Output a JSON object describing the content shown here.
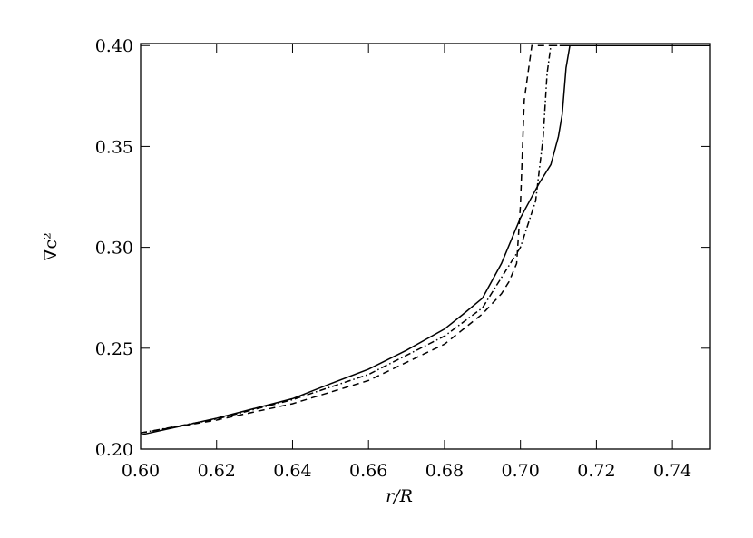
{
  "chart_data": {
    "type": "line",
    "x_label": "r/R",
    "y_label": "∇c²",
    "xlim": [
      0.6,
      0.75
    ],
    "ylim": [
      0.2,
      0.401
    ],
    "xticks": [
      {
        "value": 0.6,
        "label": "0.60"
      },
      {
        "value": 0.62,
        "label": "0.62"
      },
      {
        "value": 0.64,
        "label": "0.64"
      },
      {
        "value": 0.66,
        "label": "0.66"
      },
      {
        "value": 0.68,
        "label": "0.68"
      },
      {
        "value": 0.7,
        "label": "0.70"
      },
      {
        "value": 0.72,
        "label": "0.72"
      },
      {
        "value": 0.74,
        "label": "0.74"
      }
    ],
    "yticks": [
      {
        "value": 0.2,
        "label": "0.20"
      },
      {
        "value": 0.25,
        "label": "0.25"
      },
      {
        "value": 0.3,
        "label": "0.30"
      },
      {
        "value": 0.35,
        "label": "0.35"
      },
      {
        "value": 0.4,
        "label": "0.40"
      }
    ],
    "series": [
      {
        "color": "#000000",
        "dash": "none",
        "x": [
          0.6,
          0.62,
          0.64,
          0.65,
          0.66,
          0.67,
          0.68,
          0.685,
          0.69,
          0.695,
          0.7,
          0.705,
          0.708,
          0.71,
          0.711,
          0.712,
          0.713,
          0.75
        ],
        "values": [
          0.207,
          0.2153,
          0.225,
          0.2324,
          0.2396,
          0.249,
          0.2595,
          0.267,
          0.2748,
          0.292,
          0.3146,
          0.332,
          0.341,
          0.355,
          0.366,
          0.389,
          0.4,
          0.4
        ]
      },
      {
        "color": "#000000",
        "dash": "7 5",
        "x": [
          0.6,
          0.62,
          0.64,
          0.66,
          0.68,
          0.69,
          0.695,
          0.697,
          0.699,
          0.7,
          0.701,
          0.703,
          0.75
        ],
        "values": [
          0.208,
          0.2144,
          0.2225,
          0.234,
          0.252,
          0.267,
          0.277,
          0.283,
          0.292,
          0.321,
          0.373,
          0.4,
          0.4
        ]
      },
      {
        "color": "#000000",
        "dash": "7 3 1.5 3",
        "x": [
          0.6,
          0.62,
          0.64,
          0.66,
          0.68,
          0.69,
          0.7,
          0.704,
          0.706,
          0.707,
          0.708,
          0.75
        ],
        "values": [
          0.208,
          0.2149,
          0.2245,
          0.237,
          0.256,
          0.27,
          0.3,
          0.323,
          0.355,
          0.386,
          0.4,
          0.4
        ]
      }
    ]
  }
}
